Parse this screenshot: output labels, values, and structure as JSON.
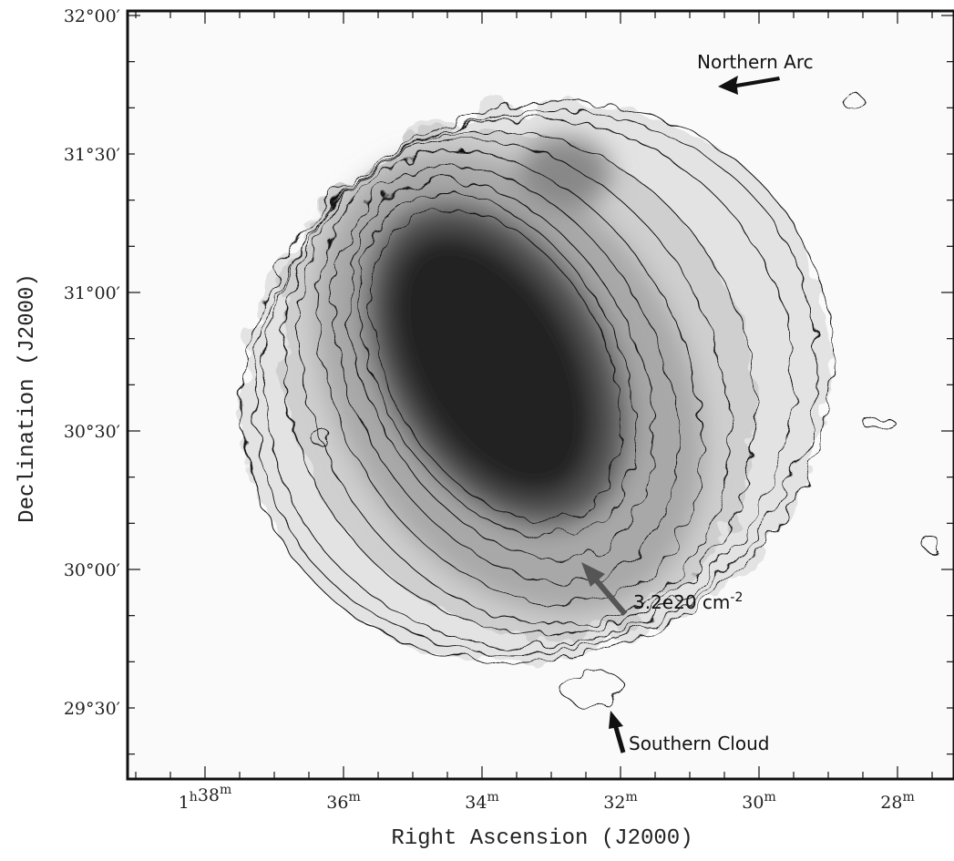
{
  "figure": {
    "x_label": "Right Ascension (J2000)",
    "y_label": "Declination (J2000)",
    "x_ticks": [
      [
        [
          "1",
          "h"
        ],
        [
          "38",
          "m"
        ]
      ],
      [
        [
          "36",
          "m"
        ]
      ],
      [
        [
          "34",
          "m"
        ]
      ],
      [
        [
          "32",
          "m"
        ]
      ],
      [
        [
          "30",
          "m"
        ]
      ],
      [
        [
          "28",
          "m"
        ]
      ]
    ],
    "y_ticks": [
      "32°00′",
      "31°30′",
      "31°00′",
      "30°30′",
      "30°00′",
      "29°30′"
    ],
    "annotations": [
      {
        "text": "Northern Arc"
      },
      {
        "text": "3.2e20 cm",
        "sup": "-2"
      },
      {
        "text": "Southern Cloud"
      }
    ]
  }
}
